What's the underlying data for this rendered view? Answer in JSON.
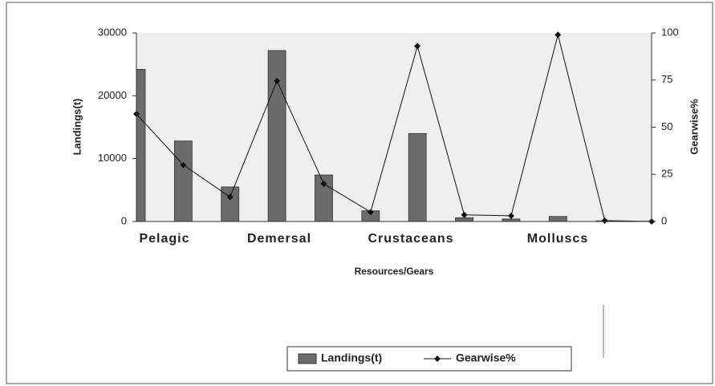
{
  "chart_data": {
    "type": "bar",
    "x_label": "Resources/Gears",
    "y_label": "Landings(t)",
    "y2_label": "Gearwise%",
    "group_labels": [
      "Pelagic",
      "Demersal",
      "Crustaceans",
      "Molluscs"
    ],
    "categories": [
      null,
      null,
      null,
      null,
      null,
      null,
      null,
      null,
      null,
      null,
      null,
      null
    ],
    "series": [
      {
        "name": "Landings(t)",
        "type": "bar",
        "color": "#6b6b6b",
        "values": [
          24200,
          12800,
          5500,
          27200,
          7400,
          1700,
          14000,
          600,
          400,
          800,
          100,
          50
        ]
      },
      {
        "name": "Gearwise%",
        "type": "line",
        "axis": "y2",
        "color": "#111111",
        "values": [
          57,
          30,
          13,
          74.5,
          20,
          5,
          93,
          3.5,
          3,
          99,
          0.5,
          0
        ]
      }
    ],
    "ylim": [
      0,
      30000
    ],
    "yticks": [
      0,
      10000,
      20000,
      30000
    ],
    "y2lim": [
      0,
      100
    ],
    "y2ticks": [
      0,
      25,
      50,
      75,
      100
    ],
    "legend": "bottom"
  }
}
